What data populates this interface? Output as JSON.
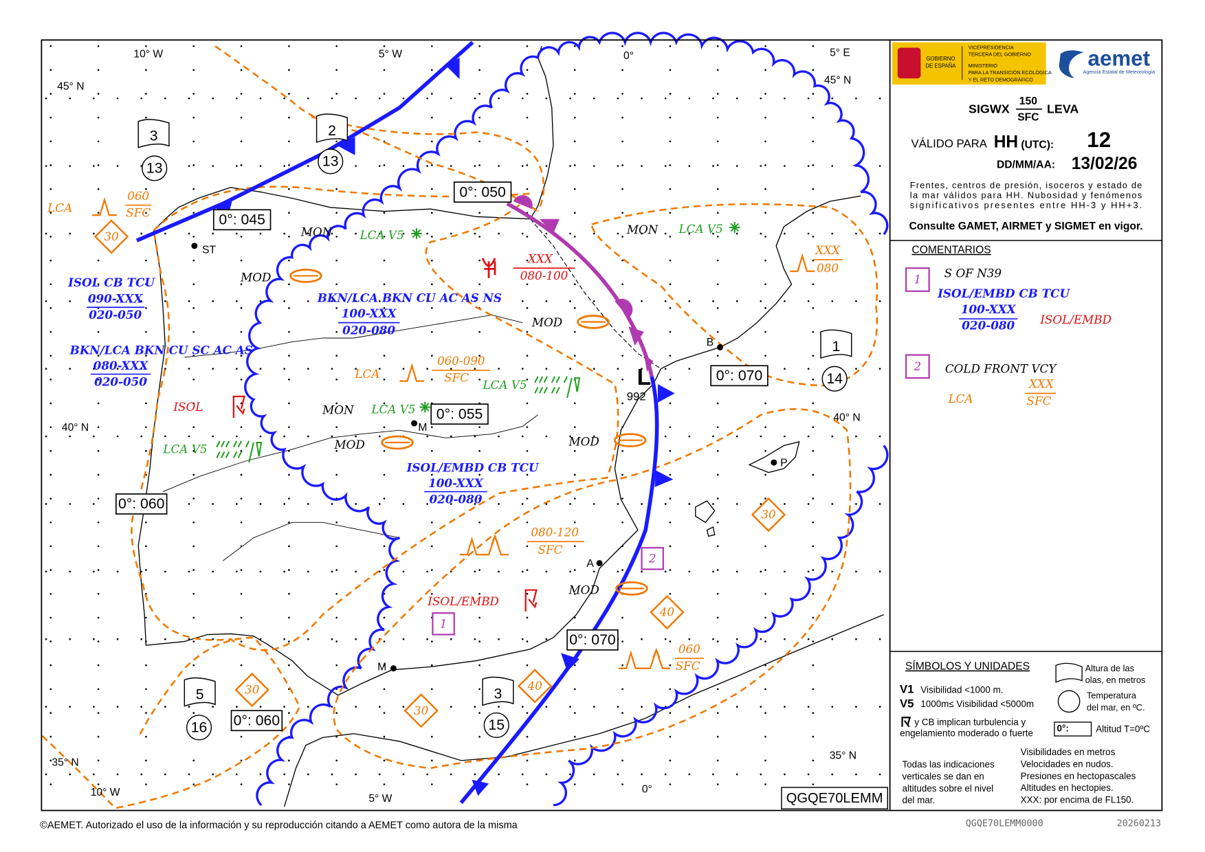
{
  "header": {
    "gov_lines": [
      "GOBIERNO",
      "DE ESPAÑA"
    ],
    "ministry_lines": [
      "VICEPRESIDENCIA",
      "TERCERA DEL GOBIERNO",
      "MINISTERIO",
      "PARA LA TRANSICIÓN ECOLÓGICA",
      "Y EL RETO DEMOGRÁFICO"
    ],
    "brand": "aemet",
    "brand_sub": "Agencia Estatal de Meteorología",
    "product": "SIGWX",
    "level_top": "150",
    "level_bottom": "SFC",
    "region": "LEVA",
    "valid_label": "VÁLIDO PARA",
    "hh": "HH",
    "utc": "(UTC):",
    "hour": "12",
    "date_label": "DD/MM/AA:",
    "date": "13/02/26",
    "description": [
      "Frentes, centros de presión, isoceros y estado de",
      "la mar válidos para HH. Nubosidad y fenómenos",
      "significativos presentes entre HH-3 y HH+3."
    ],
    "notice": "Consulte GAMET, AIRMET y SIGMET en vigor."
  },
  "comments": {
    "title": "COMENTARIOS",
    "items": [
      {
        "number": "1",
        "lines": [
          "S OF N39",
          "ISOL/EMBD CB TCU",
          "100-XXX",
          "020-080",
          "ISOL/EMBD"
        ]
      },
      {
        "number": "2",
        "lines": [
          "COLD FRONT VCY",
          "LCA",
          "XXX",
          "SFC"
        ]
      }
    ]
  },
  "legend": {
    "title": "SÍMBOLOS Y UNIDADES",
    "v1": "V1",
    "v1_text": "Visibilidad <1000 m.",
    "v5": "V5",
    "v5_text": "1000m≤ Visibilidad <5000m",
    "cb_lines": [
      "y CB  implican turbulencia y",
      "engelamiento moderado o fuerte"
    ],
    "wave_lines": [
      "Altura de las",
      "olas, en metros"
    ],
    "temp_lines": [
      "Temperatura",
      "del mar, en ºC."
    ],
    "freezing_box": "0°:",
    "freezing_text": "Altitud T=0ºC",
    "vertical_lines": [
      "Todas las indicaciones",
      "verticales se dan en",
      "altitudes sobre el nivel",
      "del mar."
    ],
    "units_lines": [
      "Visibilidades en metros",
      "Velocidades en nudos.",
      "Presiones en hectopascales",
      "Altitudes en hectopies.",
      "XXX: por encima de FL150."
    ],
    "code": "QGQE70LEMM"
  },
  "map": {
    "graticule": [
      "10° W",
      "5° W",
      "0°",
      "5° E",
      "45° N",
      "45° N",
      "40° N",
      "40° N",
      "35° N",
      "35° N",
      "10° W",
      "5° W",
      "0°"
    ],
    "freezing_levels": [
      "0°: 050",
      "0°: 045",
      "0°: 070",
      "0°: 055",
      "0°: 060",
      "0°: 060",
      "0°: 070"
    ],
    "sea_flags": [
      {
        "wave": "3",
        "temp": "13"
      },
      {
        "wave": "2",
        "temp": "13"
      },
      {
        "wave": "1",
        "temp": "14"
      },
      {
        "wave": "5",
        "temp": "16"
      },
      {
        "wave": "3",
        "temp": "15"
      }
    ],
    "sea_state": [
      "30",
      "30",
      "40",
      "30",
      "30",
      "40"
    ],
    "cities": [
      "ST",
      "M",
      "B",
      "P",
      "A",
      "M"
    ],
    "pressure": {
      "center": "L",
      "value": "992"
    },
    "comment_refs": [
      "1",
      "2"
    ],
    "annotations": [
      "LCA",
      "060",
      "SFC",
      "MON",
      "LCA V5",
      "MOD",
      "ISOL CB TCU",
      "090-XXX",
      "020-050",
      "BKN/LCA BKN CU AC AS NS",
      "100-XXX",
      "020-080",
      "XXX",
      "080-100",
      "MOD",
      "MON",
      "LCA V5",
      "XXX",
      "080",
      "BKN/LCA BKN CU SC AC AS",
      "080-XXX",
      "020-050",
      "LCA",
      "060-090",
      "SFC",
      "LCA V5",
      "ISOL",
      "MON",
      "LCA V5",
      "LCA V5",
      "MOD",
      "MOD",
      "ISOL/EMBD CB TCU",
      "100-XXX",
      "020-080",
      "080-120",
      "SFC",
      "ISOL/EMBD",
      "MOD",
      "060",
      "SFC"
    ]
  },
  "footer": {
    "copyright": "©AEMET. Autorizado el uso de la información y su reproducción citando a AEMET como autora de la misma",
    "code": "QGQE70LEMM0000",
    "date": "20260213"
  }
}
